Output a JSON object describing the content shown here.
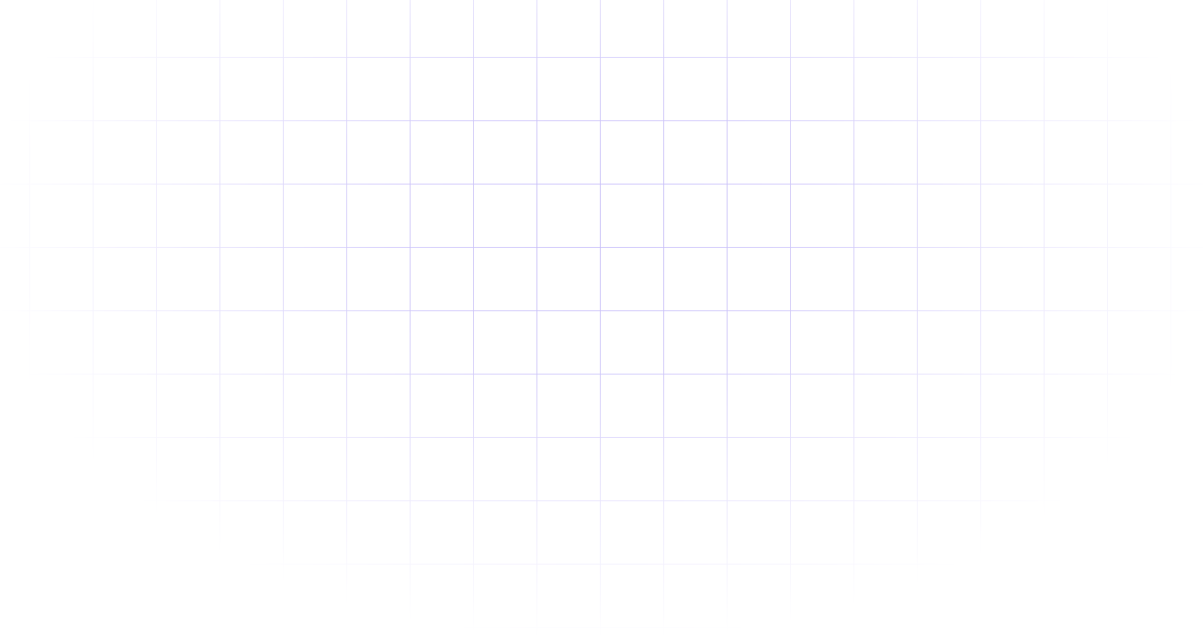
{
  "background": {
    "pattern": "grid",
    "line_color": "#c8c0ff",
    "base_color": "#ffffff"
  }
}
